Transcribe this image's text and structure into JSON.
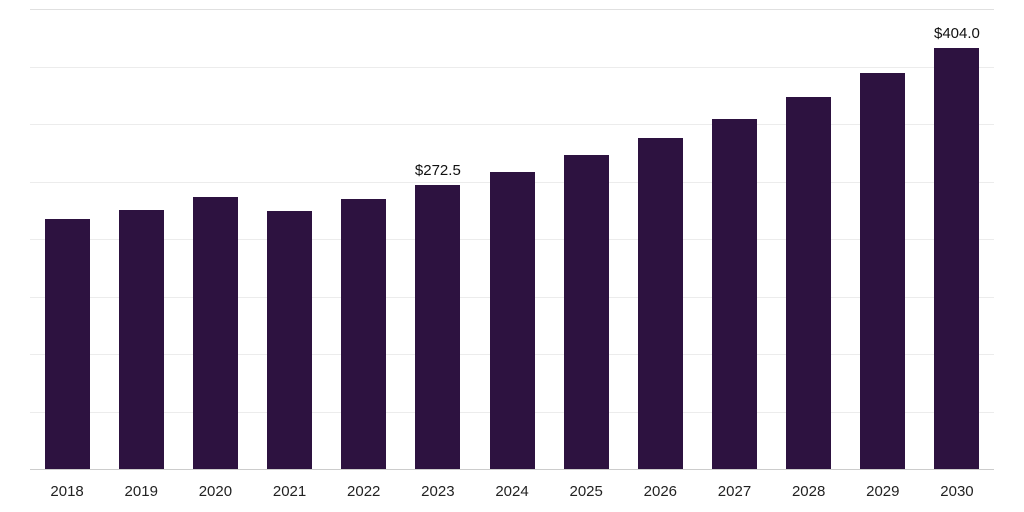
{
  "chart_data": {
    "type": "bar",
    "title": "",
    "xlabel": "",
    "ylabel": "",
    "categories": [
      "2018",
      "2019",
      "2020",
      "2021",
      "2022",
      "2023",
      "2024",
      "2025",
      "2026",
      "2027",
      "2028",
      "2029",
      "2030"
    ],
    "values": [
      240.0,
      248.5,
      261.0,
      247.5,
      259.0,
      272.5,
      285.0,
      301.0,
      317.5,
      335.5,
      356.5,
      379.5,
      404.0
    ],
    "value_labels": [
      "",
      "",
      "",
      "",
      "",
      "$272.5",
      "",
      "",
      "",
      "",
      "",
      "",
      "$404.0"
    ],
    "ylim": [
      0,
      440
    ],
    "grid": true,
    "gridline_step": 55,
    "legend_position": "none",
    "colors": {
      "bar": "#2d1240",
      "gridline": "#ececec",
      "top_gridline": "#e0e0e0",
      "axis_line": "#cccccc",
      "value_label_text": "#111111",
      "tick_text": "#222222",
      "background": "#ffffff"
    }
  }
}
